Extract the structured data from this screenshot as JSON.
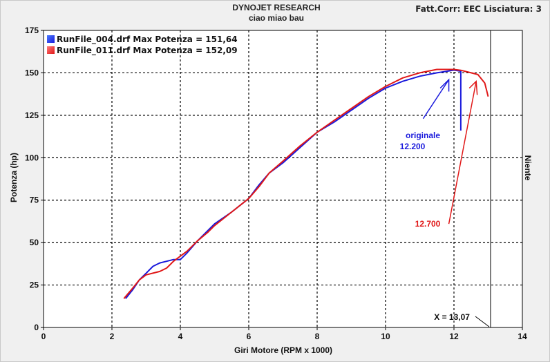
{
  "header": {
    "title": "DYNOJET RESEARCH",
    "subtitle": "ciao miao bau",
    "settings": "Fatt.Corr: EEC  Lisciatura: 3"
  },
  "side_label": "Niente",
  "cursor_label": "X = 13,07",
  "colors": {
    "blue": "#1a1adc",
    "red": "#e01818",
    "grid": "#000000",
    "plot_bg": "#ffffff"
  },
  "chart_data": {
    "type": "line",
    "xlabel": "Giri Motore (RPM x 1000)",
    "ylabel": "Potenza (hp)",
    "xlim": [
      0,
      14
    ],
    "ylim": [
      0,
      175
    ],
    "xticks": [
      "0",
      "2",
      "4",
      "6",
      "8",
      "10",
      "12",
      "14"
    ],
    "yticks": [
      "0",
      "25",
      "50",
      "75",
      "100",
      "125",
      "150",
      "175"
    ],
    "grid": true,
    "legend": "top-left",
    "cursor_x": 13.07,
    "series": [
      {
        "name": "RunFile_004.drf Max Potenza = 151,64",
        "color": "#1a1adc",
        "x": [
          2.4,
          2.6,
          2.8,
          3.0,
          3.2,
          3.4,
          3.6,
          3.8,
          4.0,
          4.2,
          4.5,
          4.8,
          5.0,
          5.5,
          6.0,
          6.3,
          6.6,
          7.0,
          7.5,
          8.0,
          8.5,
          9.0,
          9.5,
          10.0,
          10.5,
          11.0,
          11.5,
          12.0,
          12.2
        ],
        "y": [
          17,
          22,
          28,
          32,
          36,
          38,
          39,
          40,
          40,
          44,
          51,
          57,
          61,
          68,
          76,
          84,
          91,
          97,
          106,
          115,
          121,
          128,
          135,
          141,
          145,
          148,
          150,
          151.6,
          151
        ]
      },
      {
        "name": "RunFile_011.drf Max Potenza = 152,09",
        "color": "#e01818",
        "x": [
          2.35,
          2.6,
          2.8,
          3.0,
          3.2,
          3.4,
          3.6,
          3.8,
          4.0,
          4.2,
          4.5,
          4.8,
          5.0,
          5.5,
          6.0,
          6.3,
          6.6,
          7.0,
          7.5,
          8.0,
          8.5,
          9.0,
          9.5,
          10.0,
          10.5,
          11.0,
          11.5,
          12.0,
          12.2,
          12.5,
          12.7,
          12.9,
          13.0
        ],
        "y": [
          17,
          23,
          28,
          31,
          32,
          33,
          35,
          39,
          42,
          45,
          51,
          56,
          60,
          68,
          76,
          83,
          91,
          98,
          107,
          115,
          122,
          129,
          136,
          142,
          147,
          150,
          152,
          152,
          151.5,
          150,
          149,
          144,
          136
        ]
      }
    ],
    "annotations": [
      {
        "text": "originale",
        "color": "#1a1adc"
      },
      {
        "text": "12.200",
        "color": "#1a1adc"
      },
      {
        "text": "12.700",
        "color": "#e01818"
      }
    ]
  }
}
